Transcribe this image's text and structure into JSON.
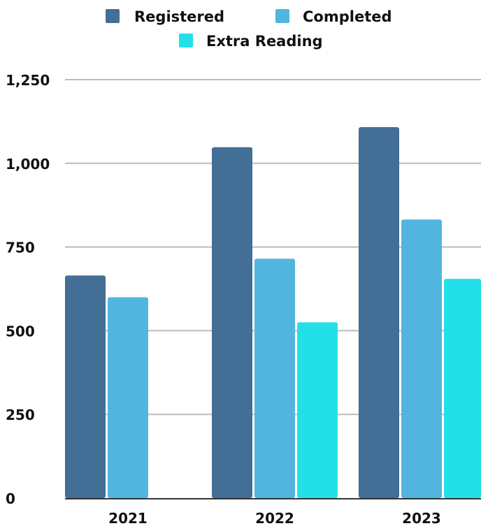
{
  "chart_data": {
    "type": "bar",
    "categories": [
      "2021",
      "2022",
      "2023"
    ],
    "series": [
      {
        "name": "Registered",
        "values": [
          665,
          1048,
          1108
        ],
        "color": "#436e96"
      },
      {
        "name": "Completed",
        "values": [
          600,
          715,
          832
        ],
        "color": "#52b5e0"
      },
      {
        "name": "Extra Reading",
        "values": [
          0,
          525,
          655
        ],
        "color": "#23e0e8"
      }
    ],
    "y_ticks": [
      "0",
      "250",
      "500",
      "750",
      "1,000",
      "1,250"
    ],
    "y_tick_values": [
      0,
      250,
      500,
      750,
      1000,
      1250
    ],
    "ylim": [
      0,
      1250
    ],
    "grid": true,
    "legend_position": "top-center",
    "gridline_color": "#bbbbbb",
    "axis_color": "#333333"
  }
}
